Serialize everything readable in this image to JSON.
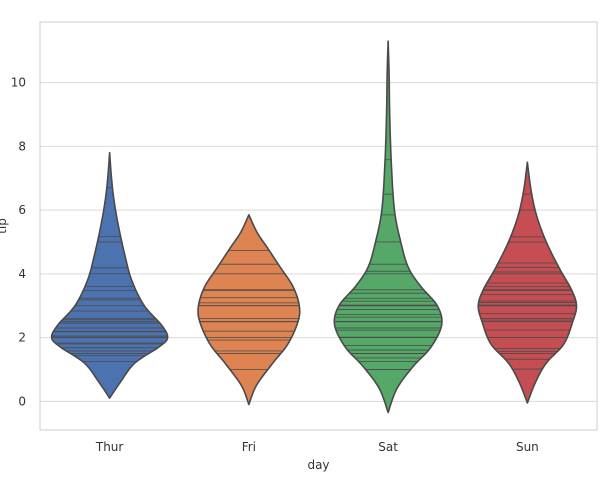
{
  "chart_data": {
    "type": "violin",
    "xlabel": "day",
    "ylabel": "tip",
    "ylim": [
      -0.9,
      11.9
    ],
    "yticks": [
      0,
      2,
      4,
      6,
      8,
      10
    ],
    "grid": true,
    "inner": "stick",
    "categories": [
      "Thur",
      "Fri",
      "Sat",
      "Sun"
    ],
    "colors": [
      "#4c72b0",
      "#dd8452",
      "#55a868",
      "#c44e52"
    ],
    "edge_color": "#4a4a4a",
    "violins": [
      {
        "category": "Thur",
        "min": 0.1,
        "max": 7.8,
        "profile": [
          [
            0.1,
            0.0
          ],
          [
            0.6,
            0.17
          ],
          [
            1.2,
            0.4
          ],
          [
            1.7,
            0.78
          ],
          [
            2.0,
            0.92
          ],
          [
            2.4,
            0.82
          ],
          [
            3.0,
            0.55
          ],
          [
            3.8,
            0.35
          ],
          [
            4.6,
            0.24
          ],
          [
            5.5,
            0.14
          ],
          [
            6.3,
            0.07
          ],
          [
            7.0,
            0.03
          ],
          [
            7.8,
            0.0
          ]
        ],
        "sticks": [
          1.25,
          1.44,
          1.5,
          1.58,
          1.68,
          1.8,
          1.83,
          2.0,
          2.0,
          2.01,
          2.05,
          2.18,
          2.2,
          2.3,
          2.45,
          2.5,
          2.56,
          2.6,
          2.83,
          3.0,
          3.18,
          3.23,
          3.48,
          3.6,
          4.0,
          4.19,
          5.0,
          5.17,
          6.7
        ]
      },
      {
        "category": "Fri",
        "min": -0.1,
        "max": 5.85,
        "profile": [
          [
            -0.1,
            0.0
          ],
          [
            0.5,
            0.12
          ],
          [
            1.2,
            0.38
          ],
          [
            1.8,
            0.62
          ],
          [
            2.5,
            0.78
          ],
          [
            3.0,
            0.8
          ],
          [
            3.6,
            0.7
          ],
          [
            4.2,
            0.5
          ],
          [
            4.8,
            0.3
          ],
          [
            5.3,
            0.13
          ],
          [
            5.85,
            0.0
          ]
        ],
        "sticks": [
          1.0,
          1.5,
          1.58,
          1.92,
          2.0,
          2.2,
          2.5,
          2.5,
          2.6,
          3.0,
          3.0,
          3.09,
          3.25,
          3.48,
          3.5,
          4.0,
          4.3,
          4.73
        ]
      },
      {
        "category": "Sat",
        "min": -0.35,
        "max": 11.3,
        "profile": [
          [
            -0.35,
            0.0
          ],
          [
            0.4,
            0.14
          ],
          [
            1.1,
            0.4
          ],
          [
            1.7,
            0.68
          ],
          [
            2.4,
            0.85
          ],
          [
            3.0,
            0.78
          ],
          [
            3.6,
            0.52
          ],
          [
            4.2,
            0.32
          ],
          [
            5.0,
            0.2
          ],
          [
            6.0,
            0.1
          ],
          [
            7.5,
            0.05
          ],
          [
            9.0,
            0.025
          ],
          [
            10.3,
            0.015
          ],
          [
            11.3,
            0.0
          ]
        ],
        "sticks": [
          1.0,
          1.0,
          1.25,
          1.36,
          1.5,
          1.5,
          1.61,
          1.75,
          2.0,
          2.0,
          2.0,
          2.01,
          2.23,
          2.3,
          2.5,
          2.5,
          2.64,
          2.72,
          2.88,
          3.0,
          3.0,
          3.02,
          3.14,
          3.23,
          3.39,
          3.5,
          4.0,
          4.08,
          4.3,
          5.0,
          5.85,
          6.5,
          7.58
        ]
      },
      {
        "category": "Sun",
        "min": -0.05,
        "max": 7.5,
        "profile": [
          [
            -0.05,
            0.0
          ],
          [
            0.6,
            0.13
          ],
          [
            1.2,
            0.3
          ],
          [
            1.8,
            0.58
          ],
          [
            2.5,
            0.72
          ],
          [
            3.0,
            0.78
          ],
          [
            3.5,
            0.7
          ],
          [
            4.2,
            0.5
          ],
          [
            5.0,
            0.3
          ],
          [
            5.8,
            0.15
          ],
          [
            6.6,
            0.06
          ],
          [
            7.5,
            0.0
          ]
        ],
        "sticks": [
          1.01,
          1.32,
          1.5,
          1.57,
          1.66,
          2.0,
          2.0,
          2.24,
          2.5,
          2.55,
          2.6,
          2.75,
          3.0,
          3.0,
          3.02,
          3.1,
          3.15,
          3.35,
          3.48,
          3.5,
          3.6,
          3.71,
          4.0,
          4.06,
          4.2,
          4.34,
          5.0,
          5.16,
          6.0,
          6.5
        ]
      }
    ]
  }
}
